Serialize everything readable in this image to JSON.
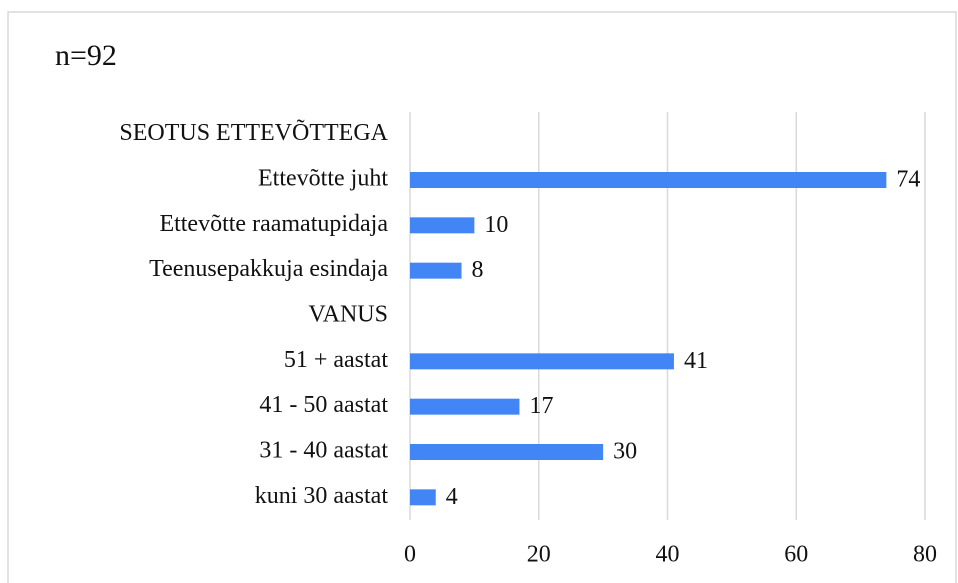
{
  "chart_data": {
    "type": "bar",
    "orientation": "horizontal",
    "title": "n=92",
    "categories": [
      "SEOTUS ETTEVÕTTEGA",
      "Ettevõtte juht",
      "Ettevõtte raamatupidaja",
      "Teenusepakkuja esindaja",
      "VANUS",
      "51 + aastat",
      "41 - 50 aastat",
      "31 - 40 aastat",
      "kuni 30 aastat"
    ],
    "values": [
      null,
      74,
      10,
      8,
      null,
      41,
      17,
      30,
      4
    ],
    "color": "#4285f4",
    "xlim": [
      0,
      80
    ],
    "xticks": [
      0,
      20,
      40,
      60,
      80
    ],
    "grid": true
  }
}
